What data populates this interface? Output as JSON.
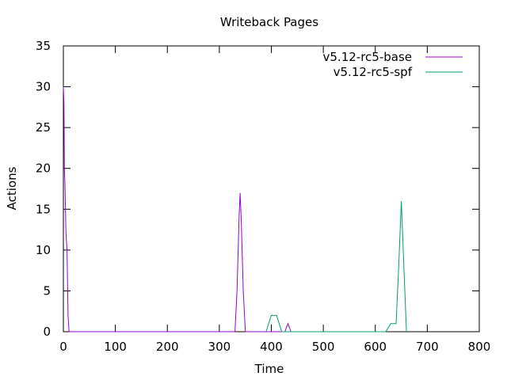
{
  "chart_data": {
    "type": "line",
    "title": "Writeback Pages",
    "xlabel": "Time",
    "ylabel": "Actions",
    "xlim": [
      0,
      800
    ],
    "ylim": [
      0,
      35
    ],
    "xticks": [
      0,
      100,
      200,
      300,
      400,
      500,
      600,
      700,
      800
    ],
    "yticks": [
      0,
      5,
      10,
      15,
      20,
      25,
      30,
      35
    ],
    "grid": false,
    "legend_position": "top-right",
    "series": [
      {
        "name": "v5.12-rc5-base",
        "color": "#9400d3",
        "x": [
          0,
          1,
          2,
          3,
          5,
          7,
          9,
          11,
          330,
          334,
          338,
          340,
          342,
          346,
          350,
          420,
          426,
          432,
          438,
          444
        ],
        "y": [
          30,
          28,
          20,
          18,
          12,
          10,
          2,
          0,
          0,
          5,
          14,
          17,
          14,
          5,
          0,
          0,
          0,
          1,
          0,
          0
        ]
      },
      {
        "name": "v5.12-rc5-spf",
        "color": "#009e73",
        "x": [
          390,
          400,
          410,
          420,
          620,
          630,
          640,
          645,
          650,
          655,
          660
        ],
        "y": [
          0,
          2,
          2,
          0,
          0,
          1,
          1,
          8,
          16,
          8,
          0
        ]
      }
    ]
  }
}
